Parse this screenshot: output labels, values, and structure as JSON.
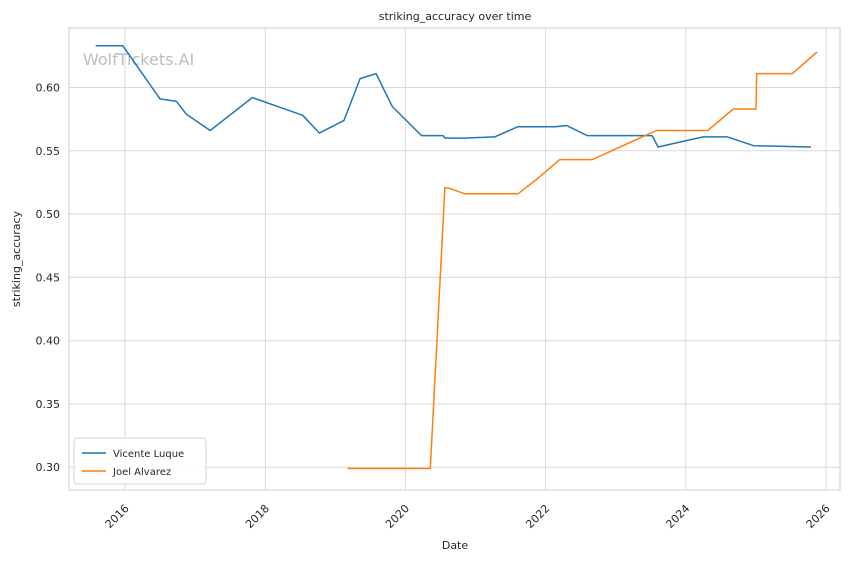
{
  "chart_data": {
    "type": "line",
    "title": "striking_accuracy over time",
    "xlabel": "Date",
    "ylabel": "striking_accuracy",
    "watermark": "WolfTickets.AI",
    "x_axis": "date",
    "xlim": [
      "2015-03-15",
      "2026-03-15"
    ],
    "ylim": [
      0.282,
      0.647
    ],
    "x_ticks": [
      "2016",
      "2018",
      "2020",
      "2022",
      "2024",
      "2026"
    ],
    "y_ticks": [
      "0.30",
      "0.35",
      "0.40",
      "0.45",
      "0.50",
      "0.55",
      "0.60"
    ],
    "grid": true,
    "legend_position": "lower-left",
    "series": [
      {
        "name": "Vicente Luque",
        "color": "#1f77b4",
        "points": [
          [
            "2015-08-01",
            0.633
          ],
          [
            "2015-12-20",
            0.633
          ],
          [
            "2016-07-01",
            0.591
          ],
          [
            "2016-09-25",
            0.589
          ],
          [
            "2016-11-15",
            0.579
          ],
          [
            "2017-03-20",
            0.566
          ],
          [
            "2017-10-25",
            0.592
          ],
          [
            "2018-07-15",
            0.578
          ],
          [
            "2018-10-10",
            0.564
          ],
          [
            "2019-02-15",
            0.574
          ],
          [
            "2019-05-10",
            0.607
          ],
          [
            "2019-08-01",
            0.611
          ],
          [
            "2019-10-25",
            0.585
          ],
          [
            "2020-03-25",
            0.562
          ],
          [
            "2020-07-15",
            0.562
          ],
          [
            "2020-07-25",
            0.56
          ],
          [
            "2020-11-01",
            0.56
          ],
          [
            "2021-04-10",
            0.561
          ],
          [
            "2021-08-10",
            0.569
          ],
          [
            "2022-02-20",
            0.569
          ],
          [
            "2022-04-20",
            0.57
          ],
          [
            "2022-08-05",
            0.562
          ],
          [
            "2023-07-10",
            0.562
          ],
          [
            "2023-08-10",
            0.553
          ],
          [
            "2024-04-01",
            0.561
          ],
          [
            "2024-08-05",
            0.561
          ],
          [
            "2024-12-20",
            0.554
          ],
          [
            "2025-10-15",
            0.553
          ]
        ]
      },
      {
        "name": "Joel Alvarez",
        "color": "#ff7f0e",
        "points": [
          [
            "2019-03-05",
            0.299
          ],
          [
            "2020-05-10",
            0.299
          ],
          [
            "2020-07-25",
            0.521
          ],
          [
            "2020-08-25",
            0.52
          ],
          [
            "2020-11-05",
            0.516
          ],
          [
            "2021-08-10",
            0.516
          ],
          [
            "2021-11-20",
            0.528
          ],
          [
            "2022-03-15",
            0.543
          ],
          [
            "2022-09-01",
            0.543
          ],
          [
            "2023-08-01",
            0.566
          ],
          [
            "2024-04-25",
            0.566
          ],
          [
            "2024-09-05",
            0.583
          ],
          [
            "2025-01-01",
            0.583
          ],
          [
            "2025-01-05",
            0.611
          ],
          [
            "2025-07-10",
            0.611
          ],
          [
            "2025-11-15",
            0.628
          ]
        ]
      }
    ]
  }
}
